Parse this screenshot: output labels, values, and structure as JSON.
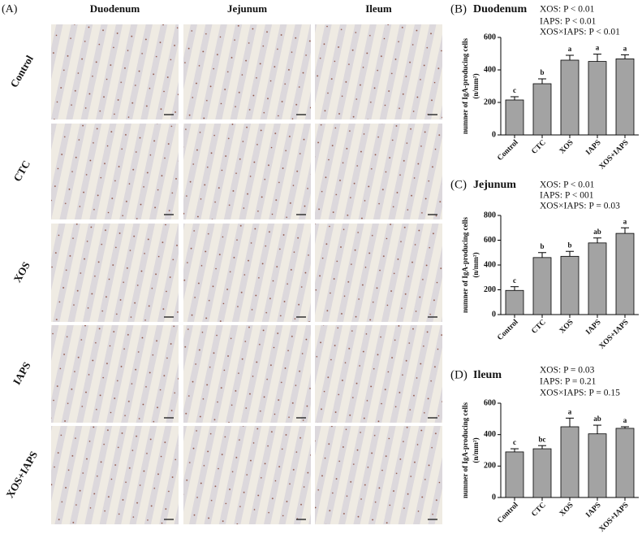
{
  "micrographs": {
    "panel_label": "(A)",
    "columns": [
      "Duodenum",
      "Jejunum",
      "Ileum"
    ],
    "rows": [
      "Control",
      "CTC",
      "XOS",
      "IAPS",
      "XOS+IAPS"
    ]
  },
  "chart_data": [
    {
      "type": "bar",
      "panel_label": "(B)",
      "title": "Duodenum",
      "annotations": [
        "XOS: P < 0.01",
        "IAPS: P < 0.01",
        "XOS×IAPS: P < 0.01"
      ],
      "ylabel": [
        "numner of IgA-producing cells",
        "(n/mm²)"
      ],
      "categories": [
        "Control",
        "CTC",
        "XOS",
        "IAPS",
        "XOS+IAPS"
      ],
      "values": [
        215,
        315,
        460,
        452,
        468
      ],
      "errors": [
        20,
        30,
        30,
        45,
        25
      ],
      "letters": [
        "c",
        "b",
        "a",
        "a",
        "a"
      ],
      "color": "#a3a3a3",
      "ylim": [
        0,
        600
      ],
      "yticks": [
        0,
        200,
        400,
        600
      ]
    },
    {
      "type": "bar",
      "panel_label": "(C)",
      "title": "Jejunum",
      "annotations": [
        "XOS: P < 0.01",
        "IAPS: P < 001",
        "XOS×IAPS: P = 0.03"
      ],
      "ylabel": [
        "numner of IgA-producing cells",
        "(n/mm²)"
      ],
      "categories": [
        "Control",
        "CTC",
        "XOS",
        "IAPS",
        "XOS+IAPS"
      ],
      "values": [
        195,
        460,
        470,
        578,
        655
      ],
      "errors": [
        30,
        40,
        40,
        40,
        45
      ],
      "letters": [
        "c",
        "b",
        "b",
        "ab",
        "a"
      ],
      "color": "#a3a3a3",
      "ylim": [
        0,
        800
      ],
      "yticks": [
        0,
        200,
        400,
        600,
        800
      ]
    },
    {
      "type": "bar",
      "panel_label": "(D)",
      "title": "Ileum",
      "annotations": [
        "XOS: P = 0.03",
        "IAPS: P = 0.21",
        "XOS×IAPS: P = 0.15"
      ],
      "ylabel": [
        "numner of IgA-producing cells",
        "(n/mm²)"
      ],
      "categories": [
        "Control",
        "CTC",
        "XOS",
        "IAPS",
        "XOS+IAPS"
      ],
      "values": [
        290,
        310,
        450,
        405,
        440
      ],
      "errors": [
        20,
        20,
        55,
        55,
        10
      ],
      "letters": [
        "c",
        "bc",
        "a",
        "ab",
        "a"
      ],
      "color": "#a3a3a3",
      "ylim": [
        0,
        600
      ],
      "yticks": [
        0,
        200,
        400,
        600
      ]
    }
  ]
}
